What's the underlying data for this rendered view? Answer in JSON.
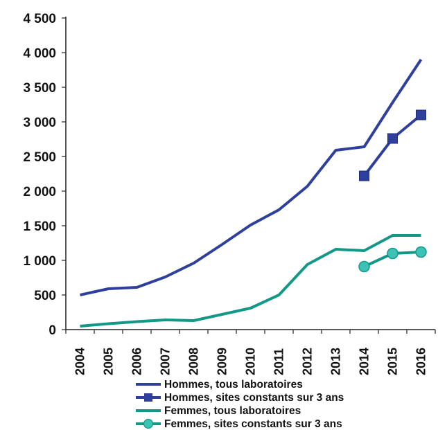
{
  "chart_data": {
    "type": "line",
    "title": "",
    "xlabel": "",
    "ylabel": "",
    "ylim": [
      0,
      4500
    ],
    "grid": false,
    "legend_position": "bottom",
    "categories": [
      "2004",
      "2005",
      "2006",
      "2007",
      "2008",
      "2009",
      "2010",
      "2011",
      "2012",
      "2013",
      "2014",
      "2015",
      "2016"
    ],
    "y_ticks": [
      {
        "value": 0,
        "label": "0"
      },
      {
        "value": 500,
        "label": "500"
      },
      {
        "value": 1000,
        "label": "1 000"
      },
      {
        "value": 1500,
        "label": "1 500"
      },
      {
        "value": 2000,
        "label": "2 000"
      },
      {
        "value": 2500,
        "label": "2 500"
      },
      {
        "value": 3000,
        "label": "3 000"
      },
      {
        "value": 3500,
        "label": "3 500"
      },
      {
        "value": 4000,
        "label": "4 000"
      },
      {
        "value": 4500,
        "label": "4 500"
      }
    ],
    "series": [
      {
        "name": "Hommes, tous laboratoires",
        "color": "#2e3f9e",
        "marker": "none",
        "values": [
          500,
          590,
          610,
          760,
          960,
          1230,
          1510,
          1730,
          2070,
          2590,
          2640,
          3280,
          3900
        ]
      },
      {
        "name": "Hommes, sites constants sur 3 ans",
        "color": "#2e3f9e",
        "marker": "square",
        "values": [
          null,
          null,
          null,
          null,
          null,
          null,
          null,
          null,
          null,
          null,
          2220,
          2760,
          3100
        ]
      },
      {
        "name": "Femmes, tous laboratoires",
        "color": "#139887",
        "marker": "none",
        "values": [
          50,
          85,
          115,
          140,
          130,
          220,
          310,
          500,
          940,
          1160,
          1140,
          1360,
          1360
        ]
      },
      {
        "name": "Femmes, sites constants sur 3 ans",
        "color": "#139887",
        "marker": "circle",
        "values": [
          null,
          null,
          null,
          null,
          null,
          null,
          null,
          null,
          null,
          null,
          910,
          1100,
          1120
        ]
      }
    ]
  }
}
